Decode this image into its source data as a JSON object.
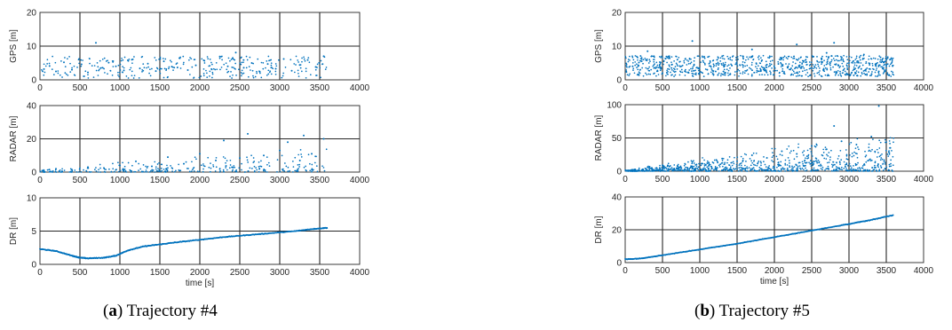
{
  "captions": [
    {
      "letter": "a",
      "text": "Trajectory #4"
    },
    {
      "letter": "b",
      "text": "Trajectory #5"
    }
  ],
  "chart_data": [
    {
      "type": "scatter",
      "panel": "a",
      "ylabel": "GPS [m]",
      "xlabel": "",
      "xlim": [
        0,
        4000
      ],
      "ylim": [
        0,
        20
      ],
      "xticks": [
        0,
        500,
        1000,
        1500,
        2000,
        2500,
        3000,
        3500,
        4000
      ],
      "yticks": [
        0,
        10,
        20
      ],
      "grid": true,
      "series": [
        {
          "values": [
            [
              50,
              3.2
            ],
            [
              120,
              4.1
            ],
            [
              200,
              2.5
            ],
            [
              300,
              5.2
            ],
            [
              400,
              3.0
            ],
            [
              520,
              4.6
            ],
            [
              600,
              2.2
            ],
            [
              700,
              11.0
            ],
            [
              760,
              3.5
            ],
            [
              860,
              5.1
            ],
            [
              950,
              4.0
            ],
            [
              1050,
              2.8
            ],
            [
              1150,
              6.0
            ],
            [
              1250,
              3.4
            ],
            [
              1350,
              4.8
            ],
            [
              1450,
              2.6
            ],
            [
              1550,
              5.5
            ],
            [
              1650,
              3.9
            ],
            [
              1750,
              6.4
            ],
            [
              1850,
              2.9
            ],
            [
              1950,
              4.3
            ],
            [
              2050,
              5.8
            ],
            [
              2150,
              3.1
            ],
            [
              2250,
              6.9
            ],
            [
              2350,
              4.0
            ],
            [
              2450,
              8.1
            ],
            [
              2550,
              3.6
            ],
            [
              2650,
              5.0
            ],
            [
              2750,
              2.4
            ],
            [
              2850,
              4.7
            ],
            [
              2950,
              3.3
            ],
            [
              3050,
              6.2
            ],
            [
              3150,
              2.7
            ],
            [
              3250,
              4.4
            ],
            [
              3350,
              5.9
            ],
            [
              3450,
              3.8
            ],
            [
              3550,
              7.0
            ]
          ]
        }
      ],
      "description_of_noise": "about 400 readings between 0 and 7 m"
    },
    {
      "type": "scatter",
      "panel": "a",
      "ylabel": "RADAR [m]",
      "xlabel": "",
      "xlim": [
        0,
        4000
      ],
      "ylim": [
        0,
        40
      ],
      "xticks": [
        0,
        500,
        1000,
        1500,
        2000,
        2500,
        3000,
        3500,
        4000
      ],
      "yticks": [
        0,
        20,
        40
      ],
      "grid": true,
      "series": [
        {
          "values": [
            [
              50,
              1.0
            ],
            [
              200,
              2.0
            ],
            [
              400,
              1.5
            ],
            [
              600,
              3.0
            ],
            [
              800,
              2.5
            ],
            [
              1000,
              4.0
            ],
            [
              1200,
              6.5
            ],
            [
              1400,
              3.5
            ],
            [
              1600,
              9.0
            ],
            [
              1800,
              5.0
            ],
            [
              2000,
              11.0
            ],
            [
              2200,
              7.0
            ],
            [
              2300,
              19.0
            ],
            [
              2500,
              8.5
            ],
            [
              2600,
              23.0
            ],
            [
              2800,
              10.0
            ],
            [
              3000,
              13.0
            ],
            [
              3100,
              18.0
            ],
            [
              3300,
              22.0
            ],
            [
              3400,
              11.0
            ],
            [
              3550,
              20.0
            ]
          ]
        }
      ]
    },
    {
      "type": "line",
      "panel": "a",
      "ylabel": "DR [m]",
      "xlabel": "time [s]",
      "xlim": [
        0,
        4000
      ],
      "ylim": [
        0,
        10
      ],
      "xticks": [
        0,
        500,
        1000,
        1500,
        2000,
        2500,
        3000,
        3500,
        4000
      ],
      "yticks": [
        0,
        5,
        10
      ],
      "grid": true,
      "series": [
        {
          "x": [
            0,
            200,
            400,
            500,
            600,
            800,
            950,
            1100,
            1300,
            1500,
            1700,
            2000,
            2300,
            2600,
            2900,
            3200,
            3400,
            3600
          ],
          "values": [
            2.3,
            2.0,
            1.3,
            1.0,
            0.9,
            1.0,
            1.3,
            2.1,
            2.7,
            3.0,
            3.3,
            3.7,
            4.1,
            4.4,
            4.7,
            5.0,
            5.3,
            5.5
          ]
        }
      ]
    },
    {
      "type": "scatter",
      "panel": "b",
      "ylabel": "GPS [m]",
      "xlabel": "",
      "xlim": [
        0,
        4000
      ],
      "ylim": [
        0,
        20
      ],
      "xticks": [
        0,
        500,
        1000,
        1500,
        2000,
        2500,
        3000,
        3500,
        4000
      ],
      "yticks": [
        0,
        10,
        20
      ],
      "grid": true,
      "series": [
        {
          "values": [
            [
              100,
              4.0
            ],
            [
              300,
              8.5
            ],
            [
              500,
              2.0
            ],
            [
              700,
              6.0
            ],
            [
              900,
              11.5
            ],
            [
              1100,
              3.0
            ],
            [
              1300,
              7.0
            ],
            [
              1500,
              2.5
            ],
            [
              1700,
              9.0
            ],
            [
              1900,
              4.5
            ],
            [
              2100,
              6.5
            ],
            [
              2300,
              10.5
            ],
            [
              2500,
              3.5
            ],
            [
              2700,
              8.0
            ],
            [
              2800,
              11.0
            ],
            [
              3000,
              5.0
            ],
            [
              3200,
              7.5
            ],
            [
              3400,
              2.5
            ],
            [
              3550,
              6.0
            ]
          ]
        }
      ]
    },
    {
      "type": "scatter",
      "panel": "b",
      "ylabel": "RADAR [m]",
      "xlabel": "",
      "xlim": [
        0,
        4000
      ],
      "ylim": [
        0,
        100
      ],
      "xticks": [
        0,
        500,
        1000,
        1500,
        2000,
        2500,
        3000,
        3500,
        4000
      ],
      "yticks": [
        0,
        50,
        100
      ],
      "grid": true,
      "series": [
        {
          "values": [
            [
              100,
              2.0
            ],
            [
              300,
              6.0
            ],
            [
              500,
              9.0
            ],
            [
              700,
              8.0
            ],
            [
              900,
              14.0
            ],
            [
              1100,
              12.0
            ],
            [
              1300,
              19.0
            ],
            [
              1500,
              15.0
            ],
            [
              1700,
              24.0
            ],
            [
              1900,
              20.0
            ],
            [
              2100,
              30.0
            ],
            [
              2300,
              26.0
            ],
            [
              2500,
              38.0
            ],
            [
              2700,
              33.0
            ],
            [
              2800,
              68.0
            ],
            [
              2900,
              45.0
            ],
            [
              3100,
              40.0
            ],
            [
              3300,
              52.0
            ],
            [
              3400,
              98.0
            ],
            [
              3550,
              35.0
            ]
          ]
        }
      ]
    },
    {
      "type": "line",
      "panel": "b",
      "ylabel": "DR [m]",
      "xlabel": "time [s]",
      "xlim": [
        0,
        4000
      ],
      "ylim": [
        0,
        40
      ],
      "xticks": [
        0,
        500,
        1000,
        1500,
        2000,
        2500,
        3000,
        3500,
        4000
      ],
      "yticks": [
        0,
        20,
        40
      ],
      "grid": true,
      "series": [
        {
          "x": [
            0,
            200,
            500,
            1000,
            1500,
            2000,
            2500,
            3000,
            3300,
            3600
          ],
          "values": [
            2.0,
            2.5,
            4.5,
            8.0,
            11.5,
            15.5,
            19.5,
            23.5,
            26.0,
            29.0
          ]
        }
      ]
    }
  ]
}
